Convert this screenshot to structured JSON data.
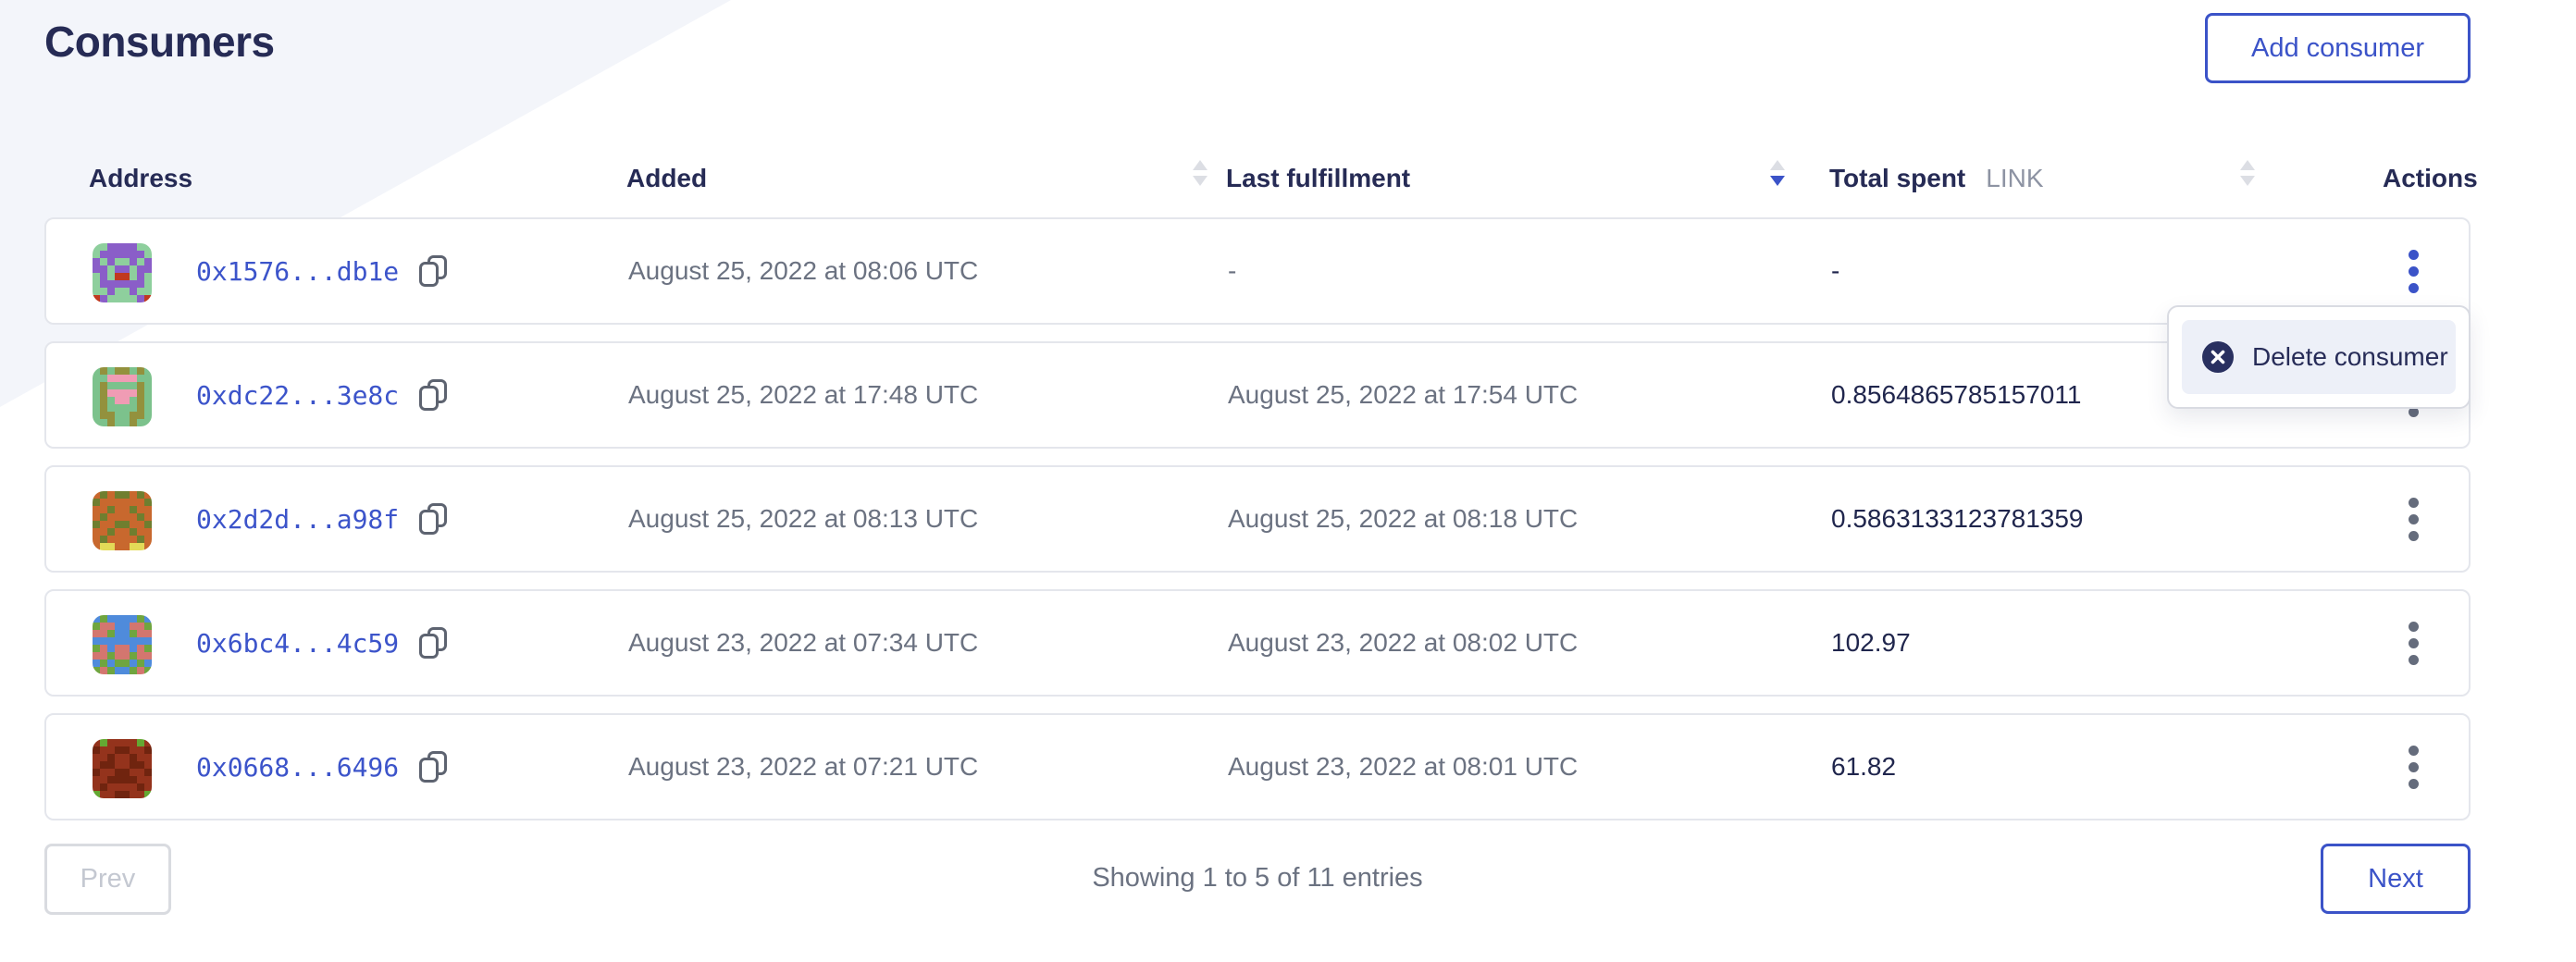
{
  "page": {
    "title": "Consumers"
  },
  "header_actions": {
    "add_consumer_label": "Add consumer"
  },
  "table": {
    "columns": {
      "address": "Address",
      "added": "Added",
      "last_fulfillment": "Last fulfillment",
      "total_spent": "Total spent",
      "total_spent_unit": "LINK",
      "actions": "Actions"
    },
    "sorted_by": "last_fulfillment",
    "sort_direction": "desc",
    "rows": [
      {
        "address": "0x1576...db1e",
        "added": "August 25, 2022 at 08:06 UTC",
        "last_fulfillment": "-",
        "total_spent": "-",
        "identicon": {
          "palette": [
            "#8ecf9d",
            "#8a5ec8",
            "#c0391f"
          ],
          "pixels": [
            [
              0,
              0,
              1,
              1,
              1,
              1,
              0,
              0
            ],
            [
              0,
              1,
              1,
              1,
              1,
              1,
              1,
              0
            ],
            [
              1,
              0,
              1,
              0,
              0,
              1,
              0,
              1
            ],
            [
              1,
              1,
              0,
              1,
              1,
              0,
              1,
              1
            ],
            [
              0,
              1,
              0,
              2,
              2,
              0,
              1,
              0
            ],
            [
              0,
              1,
              1,
              1,
              1,
              1,
              1,
              0
            ],
            [
              0,
              0,
              1,
              0,
              0,
              1,
              0,
              0
            ],
            [
              2,
              1,
              0,
              0,
              0,
              0,
              1,
              2
            ]
          ]
        }
      },
      {
        "address": "0xdc22...3e8c",
        "added": "August 25, 2022 at 17:48 UTC",
        "last_fulfillment": "August 25, 2022 at 17:54 UTC",
        "total_spent": "0.8564865785157011",
        "identicon": {
          "palette": [
            "#7cc28c",
            "#93913d",
            "#f09cb4"
          ],
          "pixels": [
            [
              0,
              1,
              0,
              1,
              1,
              0,
              1,
              0
            ],
            [
              0,
              0,
              2,
              2,
              2,
              2,
              0,
              0
            ],
            [
              0,
              1,
              0,
              0,
              0,
              0,
              1,
              0
            ],
            [
              0,
              1,
              2,
              2,
              2,
              2,
              1,
              0
            ],
            [
              0,
              1,
              0,
              2,
              2,
              0,
              1,
              0
            ],
            [
              0,
              1,
              0,
              0,
              0,
              0,
              1,
              0
            ],
            [
              0,
              1,
              1,
              0,
              0,
              1,
              1,
              0
            ],
            [
              0,
              0,
              1,
              0,
              0,
              1,
              0,
              0
            ]
          ]
        }
      },
      {
        "address": "0x2d2d...a98f",
        "added": "August 25, 2022 at 08:13 UTC",
        "last_fulfillment": "August 25, 2022 at 08:18 UTC",
        "total_spent": "0.5863133123781359",
        "identicon": {
          "palette": [
            "#6f7e2f",
            "#c8682e",
            "#e3da57"
          ],
          "pixels": [
            [
              1,
              0,
              1,
              0,
              0,
              1,
              0,
              1
            ],
            [
              0,
              1,
              1,
              1,
              1,
              1,
              1,
              0
            ],
            [
              1,
              1,
              0,
              1,
              1,
              0,
              1,
              1
            ],
            [
              1,
              0,
              1,
              1,
              1,
              1,
              0,
              1
            ],
            [
              0,
              1,
              1,
              0,
              0,
              1,
              1,
              0
            ],
            [
              1,
              1,
              0,
              1,
              1,
              0,
              1,
              1
            ],
            [
              1,
              0,
              1,
              1,
              1,
              1,
              0,
              1
            ],
            [
              1,
              2,
              2,
              1,
              1,
              2,
              2,
              1
            ]
          ]
        }
      },
      {
        "address": "0x6bc4...4c59",
        "added": "August 23, 2022 at 07:34 UTC",
        "last_fulfillment": "August 23, 2022 at 08:02 UTC",
        "total_spent": "102.97",
        "identicon": {
          "palette": [
            "#4f8bdb",
            "#6fa53f",
            "#d3766f"
          ],
          "pixels": [
            [
              0,
              1,
              0,
              0,
              0,
              0,
              1,
              0
            ],
            [
              1,
              2,
              2,
              0,
              0,
              2,
              2,
              1
            ],
            [
              2,
              2,
              1,
              0,
              0,
              1,
              2,
              2
            ],
            [
              0,
              0,
              0,
              0,
              0,
              0,
              0,
              0
            ],
            [
              1,
              2,
              0,
              2,
              2,
              0,
              2,
              1
            ],
            [
              2,
              2,
              1,
              2,
              2,
              1,
              2,
              2
            ],
            [
              0,
              1,
              0,
              1,
              1,
              0,
              1,
              0
            ],
            [
              1,
              2,
              1,
              0,
              0,
              1,
              2,
              1
            ]
          ]
        }
      },
      {
        "address": "0x0668...6496",
        "added": "August 23, 2022 at 07:21 UTC",
        "last_fulfillment": "August 23, 2022 at 08:01 UTC",
        "total_spent": "61.82",
        "identicon": {
          "palette": [
            "#94331c",
            "#70240f",
            "#64a832"
          ],
          "pixels": [
            [
              0,
              2,
              0,
              0,
              0,
              0,
              2,
              0
            ],
            [
              1,
              0,
              0,
              1,
              1,
              0,
              0,
              1
            ],
            [
              0,
              0,
              1,
              0,
              0,
              1,
              0,
              0
            ],
            [
              0,
              1,
              1,
              0,
              0,
              1,
              1,
              0
            ],
            [
              1,
              0,
              0,
              1,
              1,
              0,
              0,
              1
            ],
            [
              0,
              0,
              1,
              1,
              1,
              1,
              0,
              0
            ],
            [
              0,
              1,
              0,
              0,
              0,
              0,
              1,
              0
            ],
            [
              2,
              0,
              0,
              1,
              1,
              0,
              0,
              2
            ]
          ]
        }
      }
    ]
  },
  "context_menu": {
    "delete_label": "Delete consumer"
  },
  "pagination": {
    "prev_label": "Prev",
    "next_label": "Next",
    "summary": "Showing 1 to 5 of 11 entries"
  },
  "colors": {
    "accent_blue": "#3b53c8",
    "link_blue": "#3c54ca",
    "navy_text": "#262b55",
    "gray_text": "#6b7281",
    "unit_gray": "#8d93a3",
    "wedge_bg": "#f3f5fa",
    "row_border": "#e4e6ec",
    "menu_item_bg": "#edf0f8",
    "menu_icon_bg": "#293060",
    "disabled_border": "#d9dbe0",
    "disabled_text": "#c4c8d1"
  }
}
